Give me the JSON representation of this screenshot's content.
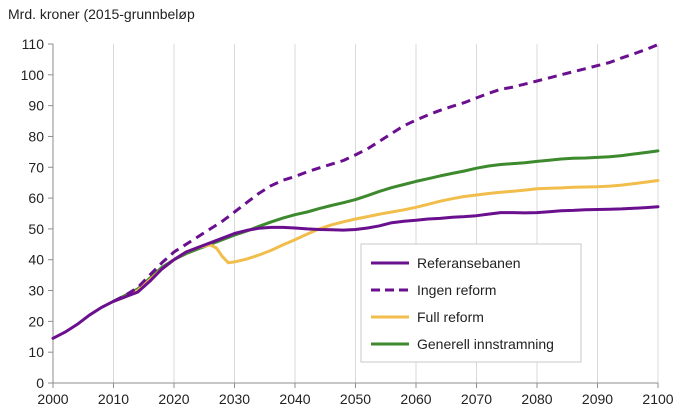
{
  "chart_data": {
    "type": "line",
    "title": "",
    "xlabel": "",
    "ylabel": "Mrd. kroner (2015-grunnbeløp",
    "xlim": [
      2000,
      2100
    ],
    "ylim": [
      0,
      110
    ],
    "xticks": [
      2000,
      2010,
      2020,
      2030,
      2040,
      2050,
      2060,
      2070,
      2080,
      2090,
      2100
    ],
    "yticks": [
      0,
      10,
      20,
      30,
      40,
      50,
      60,
      70,
      80,
      90,
      100,
      110
    ],
    "legend_position": "lower-right",
    "series": [
      {
        "name": "Referansebanen",
        "color": "#6a0f8e",
        "dash": "solid",
        "points": [
          [
            2000,
            14.5
          ],
          [
            2002,
            16.5
          ],
          [
            2004,
            19
          ],
          [
            2006,
            22
          ],
          [
            2008,
            24.5
          ],
          [
            2010,
            26.5
          ],
          [
            2012,
            28
          ],
          [
            2014,
            29.5
          ],
          [
            2016,
            33
          ],
          [
            2018,
            37
          ],
          [
            2020,
            40
          ],
          [
            2022,
            42.5
          ],
          [
            2024,
            44
          ],
          [
            2026,
            45.5
          ],
          [
            2028,
            47
          ],
          [
            2030,
            48.5
          ],
          [
            2032,
            49.5
          ],
          [
            2034,
            50.2
          ],
          [
            2036,
            50.5
          ],
          [
            2038,
            50.5
          ],
          [
            2040,
            50.3
          ],
          [
            2042,
            50
          ],
          [
            2044,
            49.8
          ],
          [
            2046,
            49.7
          ],
          [
            2048,
            49.6
          ],
          [
            2050,
            49.8
          ],
          [
            2052,
            50.3
          ],
          [
            2054,
            51
          ],
          [
            2056,
            52
          ],
          [
            2058,
            52.5
          ],
          [
            2060,
            52.8
          ],
          [
            2062,
            53.2
          ],
          [
            2064,
            53.4
          ],
          [
            2066,
            53.8
          ],
          [
            2068,
            54
          ],
          [
            2070,
            54.3
          ],
          [
            2072,
            54.8
          ],
          [
            2074,
            55.3
          ],
          [
            2076,
            55.3
          ],
          [
            2078,
            55.2
          ],
          [
            2080,
            55.3
          ],
          [
            2082,
            55.6
          ],
          [
            2084,
            55.9
          ],
          [
            2086,
            56
          ],
          [
            2088,
            56.2
          ],
          [
            2090,
            56.3
          ],
          [
            2092,
            56.4
          ],
          [
            2094,
            56.5
          ],
          [
            2096,
            56.7
          ],
          [
            2098,
            56.9
          ],
          [
            2100,
            57.2
          ]
        ]
      },
      {
        "name": "Ingen reform",
        "color": "#6a0f8e",
        "dash": "dashed",
        "points": [
          [
            2010,
            26.5
          ],
          [
            2012,
            28.5
          ],
          [
            2014,
            31
          ],
          [
            2016,
            35
          ],
          [
            2018,
            39
          ],
          [
            2020,
            42.5
          ],
          [
            2022,
            45
          ],
          [
            2024,
            47.5
          ],
          [
            2026,
            50
          ],
          [
            2028,
            52.5
          ],
          [
            2030,
            55.5
          ],
          [
            2032,
            58.5
          ],
          [
            2034,
            61.5
          ],
          [
            2036,
            64
          ],
          [
            2038,
            65.8
          ],
          [
            2040,
            67
          ],
          [
            2042,
            68.5
          ],
          [
            2044,
            69.8
          ],
          [
            2046,
            71
          ],
          [
            2048,
            72.2
          ],
          [
            2050,
            74
          ],
          [
            2052,
            76
          ],
          [
            2054,
            78.5
          ],
          [
            2056,
            81
          ],
          [
            2058,
            83.5
          ],
          [
            2060,
            85.3
          ],
          [
            2062,
            87
          ],
          [
            2064,
            88.5
          ],
          [
            2066,
            89.8
          ],
          [
            2068,
            91
          ],
          [
            2070,
            92.5
          ],
          [
            2072,
            94
          ],
          [
            2074,
            95.3
          ],
          [
            2076,
            96
          ],
          [
            2078,
            97
          ],
          [
            2080,
            98
          ],
          [
            2082,
            99
          ],
          [
            2084,
            100
          ],
          [
            2086,
            101
          ],
          [
            2088,
            102
          ],
          [
            2090,
            103
          ],
          [
            2092,
            104
          ],
          [
            2094,
            105.5
          ],
          [
            2096,
            106.8
          ],
          [
            2098,
            108.2
          ],
          [
            2100,
            109.8
          ]
        ]
      },
      {
        "name": "Full reform",
        "color": "#f1bd4b",
        "dash": "solid",
        "points": [
          [
            2010,
            26.5
          ],
          [
            2012,
            28
          ],
          [
            2014,
            30
          ],
          [
            2016,
            33.5
          ],
          [
            2018,
            37
          ],
          [
            2020,
            40
          ],
          [
            2022,
            42.5
          ],
          [
            2024,
            44
          ],
          [
            2026,
            44.8
          ],
          [
            2027,
            43.8
          ],
          [
            2028,
            41
          ],
          [
            2029,
            39
          ],
          [
            2030,
            39.3
          ],
          [
            2032,
            40.2
          ],
          [
            2034,
            41.5
          ],
          [
            2036,
            43
          ],
          [
            2038,
            44.8
          ],
          [
            2040,
            46.5
          ],
          [
            2042,
            48.3
          ],
          [
            2044,
            50
          ],
          [
            2046,
            51.3
          ],
          [
            2048,
            52.3
          ],
          [
            2050,
            53.2
          ],
          [
            2052,
            54
          ],
          [
            2054,
            54.8
          ],
          [
            2056,
            55.5
          ],
          [
            2058,
            56.2
          ],
          [
            2060,
            57
          ],
          [
            2062,
            58
          ],
          [
            2064,
            59
          ],
          [
            2066,
            59.8
          ],
          [
            2068,
            60.5
          ],
          [
            2070,
            61
          ],
          [
            2072,
            61.5
          ],
          [
            2074,
            61.9
          ],
          [
            2076,
            62.2
          ],
          [
            2078,
            62.6
          ],
          [
            2080,
            63
          ],
          [
            2082,
            63.2
          ],
          [
            2084,
            63.3
          ],
          [
            2086,
            63.5
          ],
          [
            2088,
            63.6
          ],
          [
            2090,
            63.7
          ],
          [
            2092,
            63.9
          ],
          [
            2094,
            64.2
          ],
          [
            2096,
            64.7
          ],
          [
            2098,
            65.2
          ],
          [
            2100,
            65.7
          ]
        ]
      },
      {
        "name": "Generell innstramning",
        "color": "#3d8a2e",
        "dash": "solid",
        "points": [
          [
            2010,
            26.5
          ],
          [
            2012,
            28.5
          ],
          [
            2014,
            30.5
          ],
          [
            2016,
            34
          ],
          [
            2018,
            37.5
          ],
          [
            2020,
            40
          ],
          [
            2022,
            42
          ],
          [
            2024,
            43.5
          ],
          [
            2026,
            45
          ],
          [
            2028,
            46.5
          ],
          [
            2030,
            48
          ],
          [
            2032,
            49.3
          ],
          [
            2034,
            50.8
          ],
          [
            2036,
            52.2
          ],
          [
            2038,
            53.5
          ],
          [
            2040,
            54.6
          ],
          [
            2042,
            55.5
          ],
          [
            2044,
            56.6
          ],
          [
            2046,
            57.6
          ],
          [
            2048,
            58.5
          ],
          [
            2050,
            59.5
          ],
          [
            2052,
            60.8
          ],
          [
            2054,
            62.2
          ],
          [
            2056,
            63.4
          ],
          [
            2058,
            64.4
          ],
          [
            2060,
            65.4
          ],
          [
            2062,
            66.3
          ],
          [
            2064,
            67.2
          ],
          [
            2066,
            68
          ],
          [
            2068,
            68.8
          ],
          [
            2070,
            69.7
          ],
          [
            2072,
            70.4
          ],
          [
            2074,
            70.9
          ],
          [
            2076,
            71.2
          ],
          [
            2078,
            71.5
          ],
          [
            2080,
            71.9
          ],
          [
            2082,
            72.3
          ],
          [
            2084,
            72.7
          ],
          [
            2086,
            72.9
          ],
          [
            2088,
            73
          ],
          [
            2090,
            73.2
          ],
          [
            2092,
            73.4
          ],
          [
            2094,
            73.8
          ],
          [
            2096,
            74.3
          ],
          [
            2098,
            74.8
          ],
          [
            2100,
            75.3
          ]
        ]
      }
    ]
  }
}
